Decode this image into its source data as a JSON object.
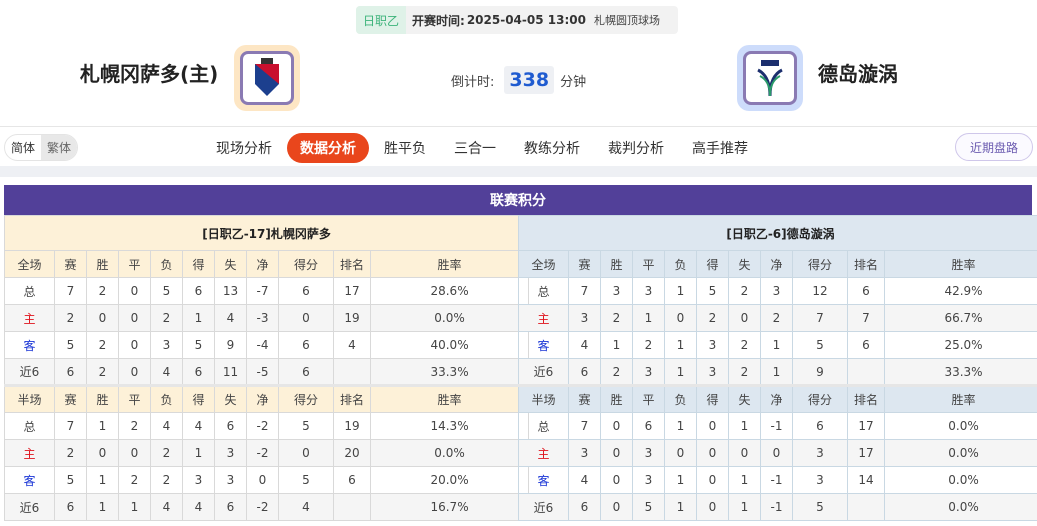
{
  "match": {
    "league": "日职乙",
    "time_label": "开赛时间:",
    "time": "2025-04-05 13:00",
    "venue": "札幌圆顶球场"
  },
  "home": {
    "name": "札幌冈萨多(主)",
    "crest": "consadole-sapporo-crest"
  },
  "away": {
    "name": "德岛漩涡",
    "crest": "tokushima-vortis-crest"
  },
  "countdown": {
    "label": "倒计时:",
    "value": "338",
    "unit": "分钟"
  },
  "lang": {
    "simplified": "简体",
    "traditional": "繁体",
    "selected": "简体"
  },
  "tabs": [
    {
      "label": "现场分析"
    },
    {
      "label": "数据分析",
      "active": true
    },
    {
      "label": "胜平负"
    },
    {
      "label": "三合一"
    },
    {
      "label": "教练分析"
    },
    {
      "label": "裁判分析"
    },
    {
      "label": "高手推荐"
    }
  ],
  "recent_button": "近期盘路",
  "section_title": "联赛积分",
  "colors": {
    "accent": "#e9461c",
    "header": "#524099",
    "home_label": "#e0141d",
    "away_label": "#1a35d6"
  },
  "tables": [
    {
      "title": "[日职乙-17]札幌冈萨多",
      "full_headers": [
        "全场",
        "赛",
        "胜",
        "平",
        "负",
        "得",
        "失",
        "净",
        "得分",
        "排名",
        "胜率"
      ],
      "full_rows": [
        [
          "总",
          "7",
          "2",
          "0",
          "5",
          "6",
          "13",
          "-7",
          "6",
          "17",
          "28.6%"
        ],
        [
          "主",
          "2",
          "0",
          "0",
          "2",
          "1",
          "4",
          "-3",
          "0",
          "19",
          "0.0%"
        ],
        [
          "客",
          "5",
          "2",
          "0",
          "3",
          "5",
          "9",
          "-4",
          "6",
          "4",
          "40.0%"
        ],
        [
          "近6",
          "6",
          "2",
          "0",
          "4",
          "6",
          "11",
          "-5",
          "6",
          "",
          "33.3%"
        ]
      ],
      "half_headers": [
        "半场",
        "赛",
        "胜",
        "平",
        "负",
        "得",
        "失",
        "净",
        "得分",
        "排名",
        "胜率"
      ],
      "half_rows": [
        [
          "总",
          "7",
          "1",
          "2",
          "4",
          "4",
          "6",
          "-2",
          "5",
          "19",
          "14.3%"
        ],
        [
          "主",
          "2",
          "0",
          "0",
          "2",
          "1",
          "3",
          "-2",
          "0",
          "20",
          "0.0%"
        ],
        [
          "客",
          "5",
          "1",
          "2",
          "2",
          "3",
          "3",
          "0",
          "5",
          "6",
          "20.0%"
        ],
        [
          "近6",
          "6",
          "1",
          "1",
          "4",
          "4",
          "6",
          "-2",
          "4",
          "",
          "16.7%"
        ]
      ]
    },
    {
      "title": "[日职乙-6]德岛漩涡",
      "full_headers": [
        "全场",
        "赛",
        "胜",
        "平",
        "负",
        "得",
        "失",
        "净",
        "得分",
        "排名",
        "胜率"
      ],
      "full_rows": [
        [
          "总",
          "7",
          "3",
          "3",
          "1",
          "5",
          "2",
          "3",
          "12",
          "6",
          "42.9%"
        ],
        [
          "主",
          "3",
          "2",
          "1",
          "0",
          "2",
          "0",
          "2",
          "7",
          "7",
          "66.7%"
        ],
        [
          "客",
          "4",
          "1",
          "2",
          "1",
          "3",
          "2",
          "1",
          "5",
          "6",
          "25.0%"
        ],
        [
          "近6",
          "6",
          "2",
          "3",
          "1",
          "3",
          "2",
          "1",
          "9",
          "",
          "33.3%"
        ]
      ],
      "half_headers": [
        "半场",
        "赛",
        "胜",
        "平",
        "负",
        "得",
        "失",
        "净",
        "得分",
        "排名",
        "胜率"
      ],
      "half_rows": [
        [
          "总",
          "7",
          "0",
          "6",
          "1",
          "0",
          "1",
          "-1",
          "6",
          "17",
          "0.0%"
        ],
        [
          "主",
          "3",
          "0",
          "3",
          "0",
          "0",
          "0",
          "0",
          "3",
          "17",
          "0.0%"
        ],
        [
          "客",
          "4",
          "0",
          "3",
          "1",
          "0",
          "1",
          "-1",
          "3",
          "14",
          "0.0%"
        ],
        [
          "近6",
          "6",
          "0",
          "5",
          "1",
          "0",
          "1",
          "-1",
          "5",
          "",
          "0.0%"
        ]
      ]
    }
  ]
}
